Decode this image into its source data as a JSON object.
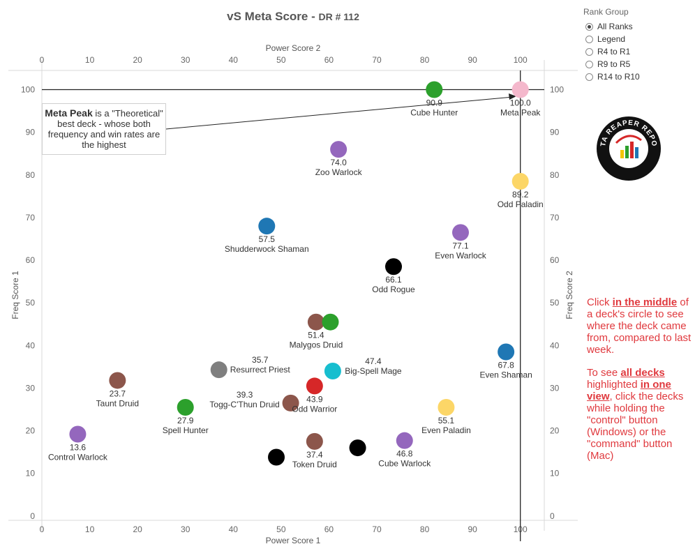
{
  "title": {
    "main": "vS Meta Score",
    "sub": "DR # 112"
  },
  "colors": {
    "meta_line": "#222222",
    "axis": "#d8d8d8",
    "note": "#e0393e"
  },
  "rank_group": {
    "title": "Rank Group",
    "options": [
      {
        "label": "All Ranks",
        "selected": true
      },
      {
        "label": "Legend",
        "selected": false
      },
      {
        "label": "R4 to R1",
        "selected": false
      },
      {
        "label": "R9 to R5",
        "selected": false
      },
      {
        "label": "R14 to R10",
        "selected": false
      }
    ]
  },
  "callout": {
    "bold": "Meta Peak",
    "text": "is a \"Theoretical\" best deck - whose both frequency and win rates are the highest"
  },
  "note": {
    "p1": [
      "Click ",
      "in the middle",
      " of a deck's circle to see where the deck came from, compared to last week."
    ],
    "p2": [
      "To see ",
      "all decks",
      " highlighted ",
      "in one view",
      ", click the decks while holding the \"control\" button (Windows) or the \"command\" button (Mac)"
    ]
  },
  "logo_text": "DATA REAPER REPORT",
  "chart_data": {
    "type": "scatter",
    "title": "vS Meta Score - DR # 112",
    "xlabel": "Power Score 1",
    "xlabel_top": "Power Score 2",
    "ylabel": "Freq Score 1",
    "ylabel_right": "Freq Score 2",
    "xlim": [
      0,
      105
    ],
    "ylim": [
      -1,
      104.5
    ],
    "xticks": [
      0,
      10,
      20,
      30,
      40,
      50,
      60,
      70,
      80,
      90,
      100
    ],
    "yticks": [
      0,
      10,
      20,
      30,
      40,
      50,
      60,
      70,
      80,
      90,
      100
    ],
    "meta_peak_lines": {
      "x": 100,
      "y": 100
    },
    "points": [
      {
        "name": "Meta Peak",
        "score": "100.0",
        "x": 100,
        "y": 100,
        "color": "#f4b8cc"
      },
      {
        "name": "Cube Hunter",
        "score": "90.9",
        "x": 82,
        "y": 100,
        "color": "#2ca02c"
      },
      {
        "name": "Zoo Warlock",
        "score": "74.0",
        "x": 62,
        "y": 86,
        "color": "#9467bd"
      },
      {
        "name": "Odd Paladin",
        "score": "89.2",
        "x": 100,
        "y": 78.5,
        "color": "#fcd667"
      },
      {
        "name": "Shudderwock Shaman",
        "score": "57.5",
        "x": 47,
        "y": 68,
        "color": "#1f77b4"
      },
      {
        "name": "Even Warlock",
        "score": "77.1",
        "x": 87.5,
        "y": 66.5,
        "color": "#9467bd"
      },
      {
        "name": "Odd Rogue",
        "score": "66.1",
        "x": 73.5,
        "y": 58.5,
        "color": "#000000"
      },
      {
        "name": "Malygos Druid",
        "score": "51.4",
        "x": 57.3,
        "y": 45.5,
        "color": "#8c564b"
      },
      {
        "name": "",
        "score": "",
        "x": 60.3,
        "y": 45.5,
        "color": "#2ca02c"
      },
      {
        "name": "Even Shaman",
        "score": "67.8",
        "x": 97,
        "y": 38.5,
        "color": "#1f77b4"
      },
      {
        "name": "Resurrect Priest",
        "score": "35.7",
        "x": 37,
        "y": 34.3,
        "color": "#7f7f7f"
      },
      {
        "name": "Big-Spell Mage",
        "score": "47.4",
        "x": 60.8,
        "y": 34,
        "color": "#17becf"
      },
      {
        "name": "Taunt Druid",
        "score": "23.7",
        "x": 15.8,
        "y": 31.8,
        "color": "#8c564b"
      },
      {
        "name": "Odd Warrior",
        "score": "43.9",
        "x": 57,
        "y": 30.5,
        "color": "#d62728"
      },
      {
        "name": "Togg-C'Thun Druid",
        "score": "39.3",
        "x": 52,
        "y": 26.5,
        "color": "#8c564b"
      },
      {
        "name": "Spell Hunter",
        "score": "27.9",
        "x": 30,
        "y": 25.5,
        "color": "#2ca02c"
      },
      {
        "name": "Even Paladin",
        "score": "55.1",
        "x": 84.5,
        "y": 25.5,
        "color": "#fcd667"
      },
      {
        "name": "Control Warlock",
        "score": "13.6",
        "x": 7.5,
        "y": 19.2,
        "color": "#9467bd"
      },
      {
        "name": "Token Druid",
        "score": "37.4",
        "x": 57,
        "y": 17.5,
        "color": "#8c564b"
      },
      {
        "name": "Cube Warlock",
        "score": "46.8",
        "x": 75.8,
        "y": 17.7,
        "color": "#9467bd"
      },
      {
        "name": "",
        "score": "",
        "x": 66,
        "y": 16,
        "color": "#000000"
      },
      {
        "name": "",
        "score": "",
        "x": 49,
        "y": 13.8,
        "color": "#000000"
      }
    ]
  }
}
